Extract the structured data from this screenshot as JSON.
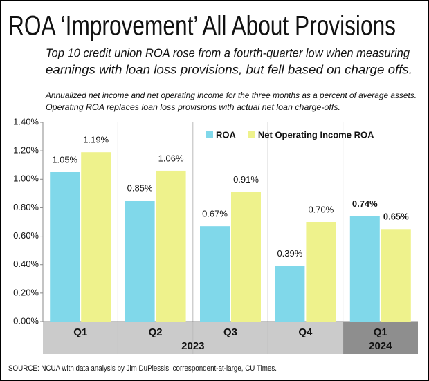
{
  "chart_data": {
    "type": "bar",
    "title": "ROA ‘Improvement’ All About Provisions",
    "subtitle": [
      "Top 10 credit union ROA rose from a fourth-quarter low when measuring",
      "earnings with loan loss provisions, but fell based on charge offs."
    ],
    "note": [
      "Annualized net income and net operating income for the three months as a percent of average assets.",
      "Operating ROA replaces loan loss provisions with actual net loan charge-offs."
    ],
    "source": "SOURCE: NCUA with data analysis by Jim DuPlessis, correspondent-at-large, CU Times.",
    "categories": [
      "Q1",
      "Q2",
      "Q3",
      "Q4",
      "Q1"
    ],
    "groups": [
      {
        "name": "2023",
        "count": 4
      },
      {
        "name": "2024",
        "count": 1
      }
    ],
    "series": [
      {
        "name": "ROA",
        "color": "#80d8ea",
        "values": [
          1.05,
          0.85,
          0.67,
          0.39,
          0.74
        ],
        "value_labels": [
          "1.05%",
          "0.85%",
          "0.67%",
          "0.39%",
          "0.74%"
        ]
      },
      {
        "name": "Net Operating Income ROA",
        "color": "#eef28c",
        "values": [
          1.19,
          1.06,
          0.91,
          0.7,
          0.65
        ],
        "value_labels": [
          "1.19%",
          "1.06%",
          "0.91%",
          "0.70%",
          "0.65%"
        ]
      }
    ],
    "ylim": [
      0,
      1.4
    ],
    "yticks": [
      {
        "value": 0,
        "label": "0.00%"
      },
      {
        "value": 0.2,
        "label": "0.20%"
      },
      {
        "value": 0.4,
        "label": "0.40%"
      },
      {
        "value": 0.6,
        "label": "0.60%"
      },
      {
        "value": 0.8,
        "label": "0.80%"
      },
      {
        "value": 1.0,
        "label": "1.00%"
      },
      {
        "value": 1.2,
        "label": "1.20%"
      },
      {
        "value": 1.4,
        "label": "1.40%"
      }
    ],
    "legend": "top-right",
    "grid": false
  }
}
